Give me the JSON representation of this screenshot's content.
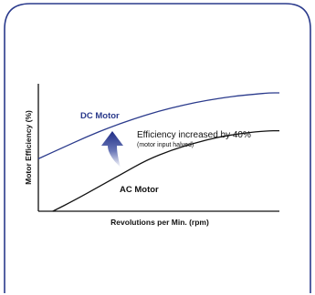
{
  "chart_data": {
    "type": "line",
    "title": "",
    "xlabel": "Revolutions per Min. (rpm)",
    "ylabel": "Motor Efficiency (%)",
    "xlim": [
      0,
      100
    ],
    "ylim": [
      0,
      100
    ],
    "grid": false,
    "series": [
      {
        "name": "DC Motor",
        "color": "#2a3a8c",
        "x": [
          0,
          10,
          20,
          30,
          40,
          50,
          60,
          70,
          80,
          90,
          96,
          100
        ],
        "y": [
          43,
          52,
          61,
          69,
          76,
          82,
          87,
          91,
          94,
          96,
          97,
          97
        ]
      },
      {
        "name": "AC Motor",
        "color": "#111111",
        "x": [
          6,
          15,
          25,
          35,
          45,
          55,
          65,
          75,
          85,
          95,
          100
        ],
        "y": [
          0,
          9,
          20,
          31,
          42,
          50,
          56,
          61,
          64,
          66,
          66
        ]
      }
    ],
    "annotations": {
      "main": "Efficiency increased by 40%",
      "sub": "(motor input halved)"
    },
    "colors": {
      "arrow_top": "#1f2d86",
      "arrow_bottom": "#ffffff",
      "card_border": "#2a3a8c"
    }
  }
}
